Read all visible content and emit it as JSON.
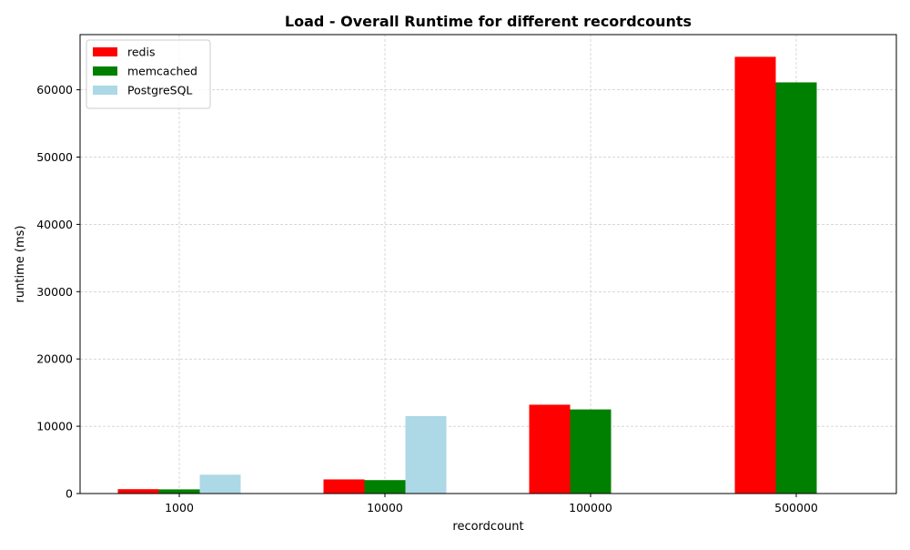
{
  "chart_data": {
    "type": "bar",
    "title": "Load - Overall Runtime for different recordcounts",
    "xlabel": "recordcount",
    "ylabel": "runtime (ms)",
    "categories": [
      "1000",
      "10000",
      "100000",
      "500000"
    ],
    "series": [
      {
        "name": "redis",
        "color": "#ff0000",
        "values": [
          650,
          2100,
          13200,
          64900
        ]
      },
      {
        "name": "memcached",
        "color": "#008000",
        "values": [
          620,
          2000,
          12500,
          61100
        ]
      },
      {
        "name": "PostgreSQL",
        "color": "#add8e6",
        "values": [
          2800,
          11500,
          null,
          null
        ]
      }
    ],
    "yticks": [
      0,
      10000,
      20000,
      30000,
      40000,
      50000,
      60000
    ],
    "ylim": [
      0,
      68200
    ],
    "grid": true,
    "legend_position": "top-left"
  }
}
